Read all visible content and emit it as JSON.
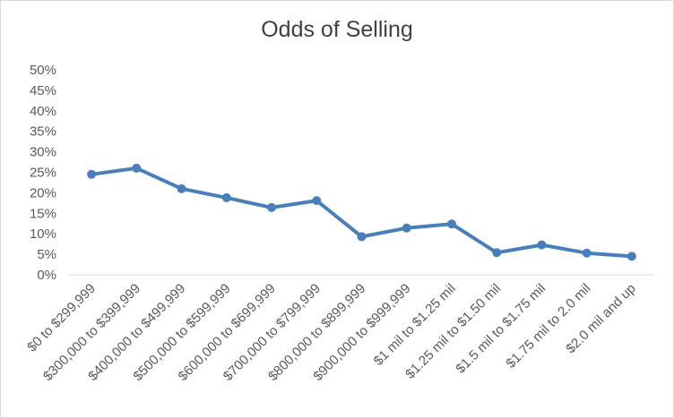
{
  "chart_data": {
    "type": "line",
    "title": "Odds of Selling",
    "xlabel": "",
    "ylabel": "",
    "categories": [
      "$0 to $299,999",
      "$300,000 to $399,999",
      "$400,000 to $499,999",
      "$500,000 to $599,999",
      "$600,000 to $699,999",
      "$700,000 to $799,999",
      "$800,000 to $899,999",
      "$900,000 to $999,999",
      "$1 mil to $1.25 mil",
      "$1.25 mil to $1.50 mil",
      "$1.5 mil to $1.75 mil",
      "$1.75 mil to 2.0 mil",
      "$2.0 mil and up"
    ],
    "series": [
      {
        "values": [
          24.5,
          26.0,
          21.0,
          18.8,
          16.4,
          18.1,
          9.3,
          11.4,
          12.4,
          5.4,
          7.3,
          5.3,
          4.5
        ]
      }
    ],
    "ylim": [
      0,
      50
    ],
    "yticks": [
      "0%",
      "5%",
      "10%",
      "15%",
      "20%",
      "25%",
      "30%",
      "35%",
      "40%",
      "45%",
      "50%"
    ],
    "grid": false,
    "legend": "none",
    "line_color": "#4a7ebb"
  }
}
